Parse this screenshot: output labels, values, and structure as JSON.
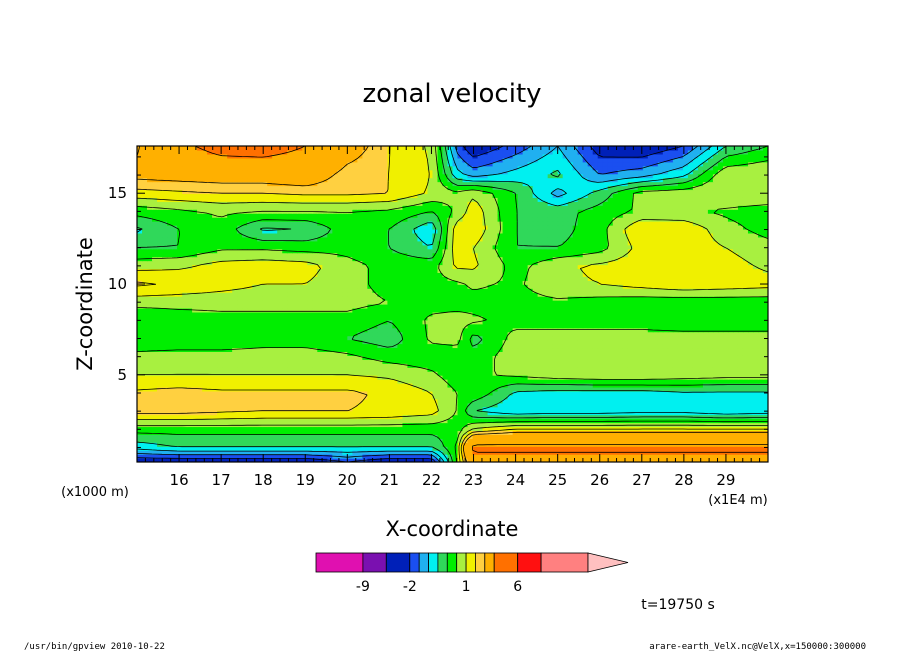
{
  "chart_data": {
    "type": "heatmap",
    "title": "zonal velocity",
    "xlabel": "X-coordinate",
    "ylabel": "Z-coordinate",
    "x_units": "(x1E4 m)",
    "y_units": "(x1000 m)",
    "xlim": [
      15,
      30
    ],
    "ylim": [
      0.2,
      17.6
    ],
    "x_ticks": [
      16,
      17,
      18,
      19,
      20,
      21,
      22,
      23,
      24,
      25,
      26,
      27,
      28,
      29
    ],
    "y_ticks": [
      5,
      10,
      15
    ],
    "time_label": "t=19750 s",
    "colorbar": {
      "levels": [
        -15,
        -9,
        -5,
        -2,
        -1.5,
        -1,
        -0.5,
        0,
        0.5,
        1,
        1.5,
        2,
        4,
        6,
        8,
        12
      ],
      "labels": [
        {
          "value": "-9",
          "text": "-9"
        },
        {
          "value": "-2",
          "text": "-2"
        },
        {
          "value": "1",
          "text": "1"
        },
        {
          "value": "6",
          "text": "6"
        }
      ],
      "colors": [
        "#e010b0",
        "#7a10b0",
        "#0020b8",
        "#1a4ff0",
        "#20b0f0",
        "#00f0f0",
        "#30d85a",
        "#00ee00",
        "#a8f040",
        "#f0f000",
        "#ffd040",
        "#ffb000",
        "#ff7000",
        "#ff1010",
        "#ff8080",
        "#ffc0c0"
      ]
    },
    "field_note_values": {
      "x": [
        15.0,
        16.0,
        17.0,
        18.0,
        19.0,
        20.0,
        21.0,
        22.0,
        22.6,
        23.0,
        24.0,
        25.0,
        26.0,
        27.0,
        28.0,
        29.0,
        30.0
      ],
      "z": [
        0.2,
        1.0,
        2.0,
        3.0,
        4.0,
        5.0,
        6.0,
        7.0,
        8.0,
        9.0,
        10.0,
        11.0,
        12.0,
        13.0,
        14.0,
        15.0,
        16.0,
        17.6
      ],
      "u": [
        [
          -2.5,
          -2.5,
          -2.5,
          -2.5,
          -2.5,
          -2.0,
          -2.5,
          -2.5,
          0.5,
          3.0,
          3.0,
          3.0,
          3.0,
          3.0,
          3.0,
          3.0,
          3.0
        ],
        [
          -0.8,
          -0.5,
          -0.5,
          -0.5,
          -0.5,
          -0.5,
          -0.5,
          -0.5,
          0.5,
          4.5,
          4.5,
          4.5,
          4.5,
          4.5,
          4.5,
          4.5,
          4.5
        ],
        [
          0.2,
          0.2,
          0.2,
          0.2,
          0.2,
          0.2,
          0.2,
          0.2,
          0.2,
          1.0,
          1.5,
          1.5,
          1.5,
          1.5,
          1.5,
          1.5,
          1.5
        ],
        [
          1.7,
          1.7,
          1.6,
          1.5,
          1.5,
          1.5,
          1.4,
          1.2,
          0.5,
          -0.5,
          -0.9,
          -0.8,
          -0.8,
          -0.7,
          -0.7,
          -0.9,
          -0.8
        ],
        [
          1.6,
          1.7,
          1.6,
          1.6,
          1.6,
          1.6,
          1.4,
          1.0,
          0.5,
          0.4,
          -0.6,
          -0.7,
          -0.7,
          -0.7,
          -0.6,
          -0.6,
          -0.6
        ],
        [
          1.0,
          1.0,
          1.0,
          1.0,
          1.0,
          1.0,
          0.9,
          0.6,
          0.2,
          0.4,
          0.6,
          0.8,
          0.9,
          0.9,
          0.8,
          0.7,
          0.7
        ],
        [
          0.7,
          0.8,
          0.8,
          0.8,
          0.8,
          0.6,
          0.3,
          0.2,
          0.2,
          0.2,
          0.8,
          1.0,
          1.0,
          0.9,
          0.8,
          0.8,
          0.8
        ],
        [
          0.0,
          0.0,
          0.0,
          0.2,
          0.2,
          0.0,
          -0.3,
          0.6,
          0.7,
          -0.2,
          0.7,
          0.7,
          0.7,
          0.7,
          0.7,
          0.7,
          0.7
        ],
        [
          0.0,
          0.2,
          0.3,
          0.3,
          0.3,
          0.3,
          0.0,
          0.6,
          0.7,
          0.6,
          0.3,
          0.3,
          0.3,
          0.3,
          0.2,
          0.2,
          0.2
        ],
        [
          0.7,
          0.7,
          0.7,
          0.7,
          0.7,
          0.7,
          0.5,
          0.3,
          0.3,
          0.3,
          0.3,
          0.4,
          0.3,
          0.2,
          0.2,
          0.2,
          0.2
        ],
        [
          1.6,
          1.4,
          1.2,
          1.0,
          1.0,
          0.7,
          0.3,
          0.3,
          0.4,
          0.6,
          0.4,
          0.9,
          1.0,
          1.2,
          1.4,
          1.3,
          1.2
        ],
        [
          0.8,
          0.9,
          1.2,
          1.3,
          1.2,
          0.7,
          0.3,
          0.3,
          1.1,
          1.1,
          0.3,
          0.9,
          1.1,
          1.3,
          1.4,
          1.2,
          0.9
        ],
        [
          0.0,
          0.0,
          0.4,
          0.4,
          0.3,
          0.3,
          0.0,
          -0.5,
          1.3,
          1.0,
          0.0,
          0.0,
          0.3,
          1.2,
          1.3,
          1.0,
          0.7
        ],
        [
          -0.6,
          0.0,
          0.3,
          -0.6,
          -0.5,
          0.3,
          0.0,
          -0.9,
          1.3,
          1.4,
          0.0,
          -0.2,
          0.3,
          1.5,
          1.4,
          0.7,
          0.3
        ],
        [
          0.2,
          0.4,
          0.6,
          0.5,
          0.5,
          0.5,
          0.4,
          0.0,
          0.6,
          1.3,
          0.0,
          -0.2,
          0.2,
          0.6,
          0.6,
          0.4,
          0.2
        ],
        [
          1.3,
          1.4,
          1.5,
          1.5,
          1.6,
          1.6,
          1.5,
          0.9,
          0.6,
          0.9,
          0.0,
          -1.2,
          -0.3,
          0.7,
          0.8,
          1.0,
          1.0
        ],
        [
          2.2,
          2.3,
          2.4,
          2.4,
          2.6,
          1.7,
          1.5,
          1.0,
          -0.8,
          -1.2,
          -0.8,
          -0.4,
          -1.5,
          -1.2,
          -0.6,
          0.9,
          1.0
        ],
        [
          1.9,
          3.5,
          4.8,
          5.0,
          4.0,
          2.5,
          1.5,
          0.9,
          -1.7,
          -2.5,
          -1.8,
          -1.0,
          -2.3,
          -2.5,
          -2.0,
          -0.5,
          0.0
        ]
      ]
    }
  },
  "footer": {
    "left": "/usr/bin/gpview   2010-10-22",
    "right": "arare-earth_VelX.nc@VelX,x=150000:300000"
  }
}
